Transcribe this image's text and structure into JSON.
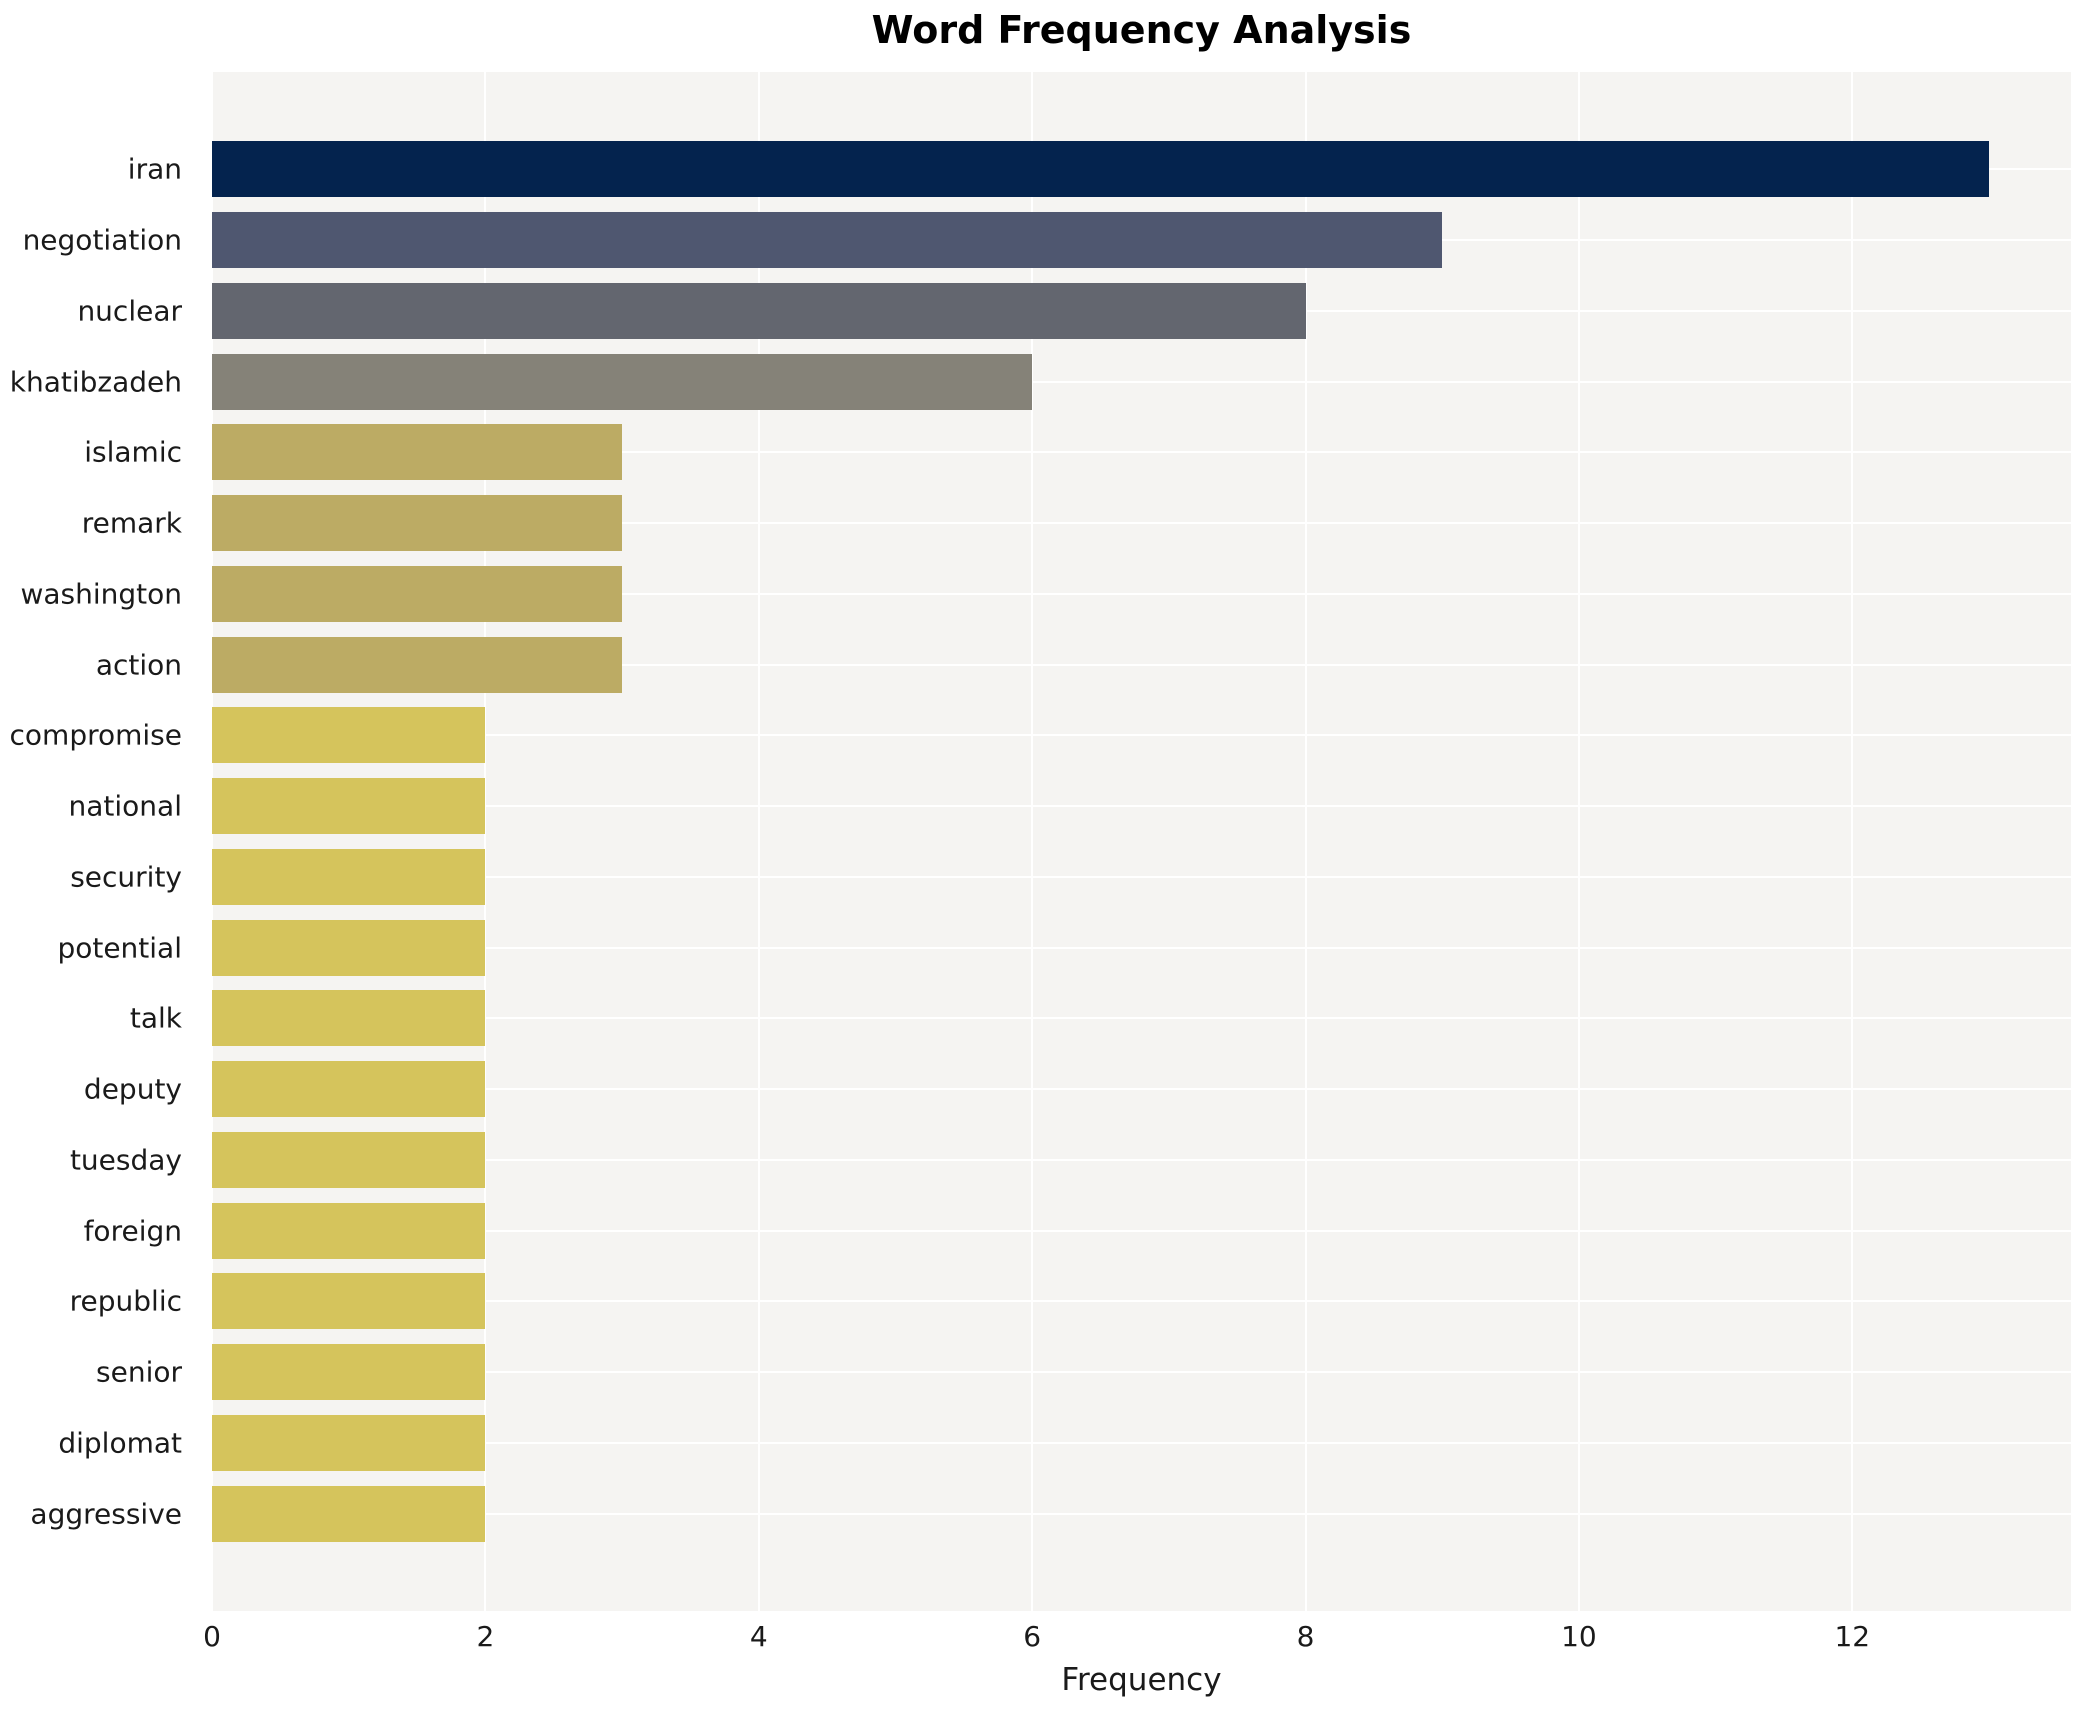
{
  "title": "Word Frequency Analysis",
  "xlabel": "Frequency",
  "colors": {
    "plot_background": "#f5f4f2",
    "grid": "#ffffff",
    "text": "#1a1a1a",
    "title": "#000000"
  },
  "chart_data": {
    "type": "bar",
    "orientation": "horizontal",
    "title": "Word Frequency Analysis",
    "xlabel": "Frequency",
    "ylabel": "",
    "categories": [
      "iran",
      "negotiation",
      "nuclear",
      "khatibzadeh",
      "islamic",
      "remark",
      "washington",
      "action",
      "compromise",
      "national",
      "security",
      "potential",
      "talk",
      "deputy",
      "tuesday",
      "foreign",
      "republic",
      "senior",
      "diplomat",
      "aggressive"
    ],
    "values": [
      13,
      9,
      8,
      6,
      3,
      3,
      3,
      3,
      2,
      2,
      2,
      2,
      2,
      2,
      2,
      2,
      2,
      2,
      2,
      2
    ],
    "bar_colors": [
      "#04234e",
      "#4f5770",
      "#63666f",
      "#858278",
      "#bcab64",
      "#bcab64",
      "#bcab64",
      "#bcab64",
      "#d5c45c",
      "#d5c45c",
      "#d5c45c",
      "#d5c45c",
      "#d5c45c",
      "#d5c45c",
      "#d5c45c",
      "#d5c45c",
      "#d5c45c",
      "#d5c45c",
      "#d5c45c",
      "#d5c45c"
    ],
    "xlim": [
      0,
      13.6
    ],
    "xticks": [
      0,
      2,
      4,
      6,
      8,
      10,
      12
    ],
    "grid": true,
    "legend": false,
    "plot_background": "#f5f4f2",
    "grid_color": "#ffffff"
  }
}
